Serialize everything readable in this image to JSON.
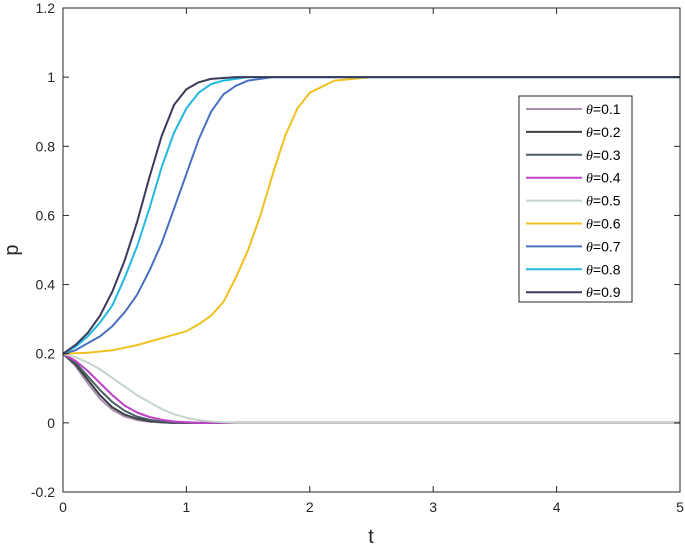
{
  "chart_data": {
    "type": "line",
    "title": "",
    "xlabel": "t",
    "ylabel": "p",
    "xlim": [
      0,
      5
    ],
    "ylim": [
      -0.2,
      1.2
    ],
    "xticks": [
      "0",
      "1",
      "2",
      "3",
      "4",
      "5"
    ],
    "yticks": [
      "-0.2",
      "0",
      "0.2",
      "0.4",
      "0.6",
      "0.8",
      "1",
      "1.2"
    ],
    "grid": false,
    "legend_position": "top-right",
    "series": [
      {
        "name": "θ=0.1",
        "color": "#a98fae",
        "x": [
          0,
          0.1,
          0.2,
          0.3,
          0.4,
          0.5,
          0.6,
          0.7,
          0.8,
          0.9,
          5
        ],
        "y": [
          0.2,
          0.165,
          0.115,
          0.07,
          0.038,
          0.018,
          0.008,
          0.003,
          0.001,
          0,
          0
        ]
      },
      {
        "name": "θ=0.2",
        "color": "#3a3f3f",
        "x": [
          0,
          0.1,
          0.2,
          0.3,
          0.4,
          0.5,
          0.6,
          0.7,
          0.8,
          0.9,
          5
        ],
        "y": [
          0.2,
          0.17,
          0.125,
          0.08,
          0.045,
          0.024,
          0.012,
          0.005,
          0.002,
          0,
          0
        ]
      },
      {
        "name": "θ=0.3",
        "color": "#4a5f66",
        "x": [
          0,
          0.1,
          0.2,
          0.3,
          0.4,
          0.5,
          0.6,
          0.7,
          0.8,
          0.9,
          1.0,
          5
        ],
        "y": [
          0.2,
          0.175,
          0.135,
          0.095,
          0.06,
          0.035,
          0.018,
          0.009,
          0.004,
          0.002,
          0,
          0
        ]
      },
      {
        "name": "θ=0.4",
        "color": "#c040c8",
        "x": [
          0,
          0.1,
          0.2,
          0.3,
          0.4,
          0.5,
          0.6,
          0.7,
          0.8,
          0.9,
          1.0,
          1.1,
          5
        ],
        "y": [
          0.2,
          0.18,
          0.15,
          0.115,
          0.08,
          0.05,
          0.03,
          0.017,
          0.009,
          0.004,
          0.002,
          0,
          0
        ]
      },
      {
        "name": "θ=0.5",
        "color": "#c4d4cc",
        "x": [
          0,
          0.1,
          0.2,
          0.3,
          0.4,
          0.5,
          0.6,
          0.7,
          0.8,
          0.9,
          1.0,
          1.1,
          1.2,
          1.3,
          1.4,
          5
        ],
        "y": [
          0.2,
          0.19,
          0.175,
          0.155,
          0.13,
          0.105,
          0.08,
          0.06,
          0.04,
          0.025,
          0.015,
          0.008,
          0.004,
          0.002,
          0,
          0
        ]
      },
      {
        "name": "θ=0.6",
        "color": "#f0c020",
        "x": [
          0,
          0.2,
          0.4,
          0.6,
          0.8,
          1.0,
          1.1,
          1.2,
          1.3,
          1.4,
          1.5,
          1.6,
          1.7,
          1.8,
          1.9,
          2.0,
          2.2,
          2.5,
          5
        ],
        "y": [
          0.2,
          0.203,
          0.21,
          0.225,
          0.245,
          0.265,
          0.285,
          0.31,
          0.35,
          0.42,
          0.5,
          0.6,
          0.72,
          0.83,
          0.91,
          0.955,
          0.99,
          1,
          1
        ]
      },
      {
        "name": "θ=0.7",
        "color": "#4870c0",
        "x": [
          0,
          0.1,
          0.2,
          0.3,
          0.4,
          0.5,
          0.6,
          0.7,
          0.8,
          0.9,
          1.0,
          1.1,
          1.2,
          1.3,
          1.4,
          1.5,
          1.7,
          5
        ],
        "y": [
          0.2,
          0.21,
          0.23,
          0.25,
          0.28,
          0.32,
          0.37,
          0.44,
          0.52,
          0.62,
          0.72,
          0.82,
          0.9,
          0.95,
          0.975,
          0.99,
          1,
          1
        ]
      },
      {
        "name": "θ=0.8",
        "color": "#20b8e0",
        "x": [
          0,
          0.1,
          0.2,
          0.3,
          0.4,
          0.5,
          0.6,
          0.7,
          0.8,
          0.9,
          1.0,
          1.1,
          1.2,
          1.3,
          1.5,
          5
        ],
        "y": [
          0.2,
          0.22,
          0.25,
          0.29,
          0.34,
          0.42,
          0.51,
          0.62,
          0.74,
          0.84,
          0.91,
          0.955,
          0.98,
          0.99,
          1,
          1
        ]
      },
      {
        "name": "θ=0.9",
        "color": "#3a3a5a",
        "x": [
          0,
          0.1,
          0.2,
          0.3,
          0.4,
          0.5,
          0.6,
          0.7,
          0.8,
          0.9,
          1.0,
          1.1,
          1.2,
          1.4,
          5
        ],
        "y": [
          0.2,
          0.225,
          0.26,
          0.31,
          0.38,
          0.47,
          0.58,
          0.71,
          0.83,
          0.92,
          0.965,
          0.985,
          0.995,
          1,
          1
        ]
      }
    ]
  }
}
